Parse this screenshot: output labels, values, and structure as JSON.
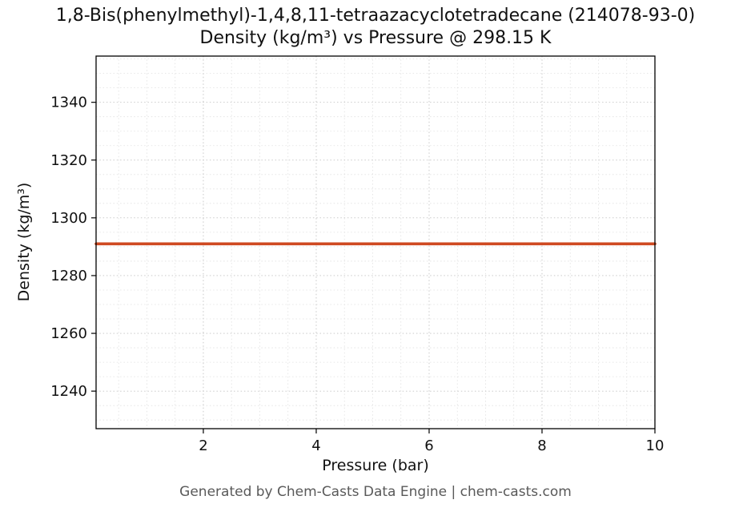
{
  "chart_data": {
    "type": "line",
    "title": "1,8-Bis(phenylmethyl)-1,4,8,11-tetraazacyclotetradecane (214078-93-0)",
    "subtitle": "Density (kg/m³) vs Pressure @ 298.15 K",
    "xlabel": "Pressure (bar)",
    "ylabel": "Density (kg/m³)",
    "x": [
      0.1,
      10
    ],
    "series": [
      {
        "name": "Density",
        "values": [
          1291,
          1291
        ]
      }
    ],
    "xlim": [
      0.1,
      10
    ],
    "ylim": [
      1227,
      1356
    ],
    "xticks": [
      2,
      4,
      6,
      8,
      10
    ],
    "yticks": [
      1240,
      1260,
      1280,
      1300,
      1320,
      1340
    ],
    "grid": true,
    "legend_position": "none",
    "line_color": "#cf4a22"
  },
  "footer": {
    "credit": "Generated by Chem-Casts Data Engine | chem-casts.com"
  }
}
